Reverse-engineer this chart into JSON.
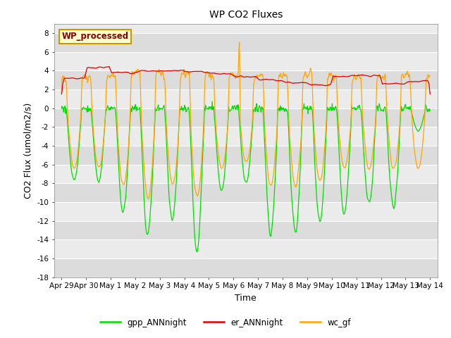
{
  "title": "WP CO2 Fluxes",
  "xlabel": "Time",
  "ylabel": "CO2 Flux (umol/m2/s)",
  "ylim": [
    -18,
    9
  ],
  "yticks": [
    -18,
    -16,
    -14,
    -12,
    -10,
    -8,
    -6,
    -4,
    -2,
    0,
    2,
    4,
    6,
    8
  ],
  "bg_outer": "#ffffff",
  "plot_bg": "#dcdcdc",
  "plot_bg_light": "#ebebeb",
  "grid_color": "#ffffff",
  "line_colors": {
    "gpp": "#00dd00",
    "er": "#dd0000",
    "wc": "#ffa500"
  },
  "legend_labels": [
    "gpp_ANNnight",
    "er_ANNnight",
    "wc_gf"
  ],
  "annotation_text": "WP_processed",
  "annotation_fg": "#8b0000",
  "annotation_bg": "#ffffcc",
  "annotation_border": "#cc9900",
  "n_days": 15,
  "n_per_day": 48,
  "seed": 7
}
